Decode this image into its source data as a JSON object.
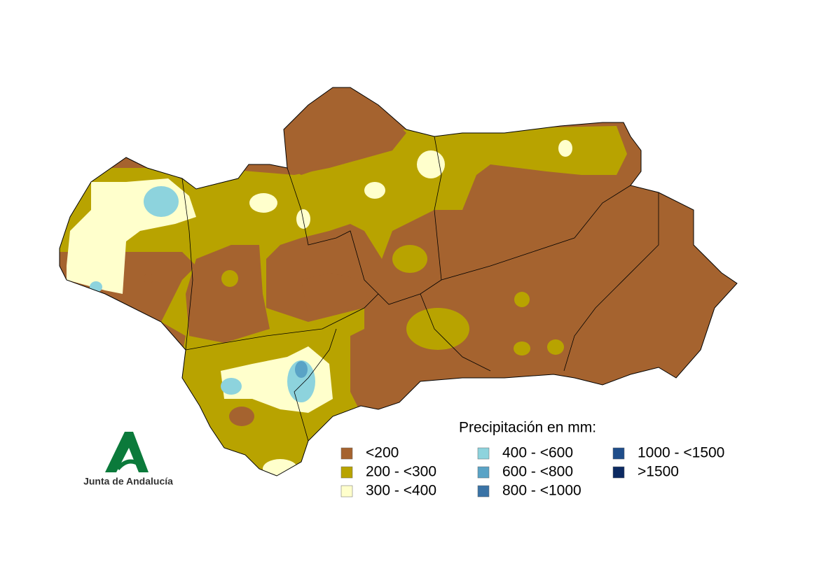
{
  "legend": {
    "title": "Precipitación en mm:",
    "items": [
      {
        "label": "<200",
        "color": "#a5632f"
      },
      {
        "label": "200 - <300",
        "color": "#b8a300"
      },
      {
        "label": "300 - <400",
        "color": "#ffffcc"
      },
      {
        "label": "400 - <600",
        "color": "#8dd3dd"
      },
      {
        "label": "600 - <800",
        "color": "#5aa3c6"
      },
      {
        "label": "800 - <1000",
        "color": "#3a73a6"
      },
      {
        "label": "1000 - <1500",
        "color": "#1f4d8a"
      },
      {
        "label": ">1500",
        "color": "#0c2a62"
      }
    ]
  },
  "logo": {
    "text": "Junta de Andalucía"
  }
}
